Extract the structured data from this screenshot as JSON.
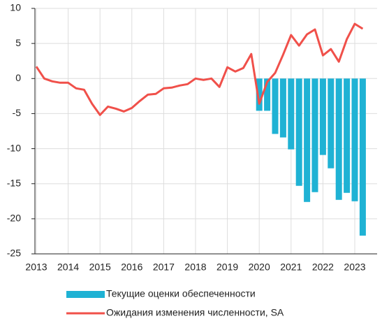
{
  "chart_data": {
    "type": "bar_line",
    "categories": [
      "2013",
      null,
      null,
      null,
      "2014",
      null,
      null,
      null,
      "2015",
      null,
      null,
      null,
      "2016",
      null,
      null,
      null,
      "2017",
      null,
      null,
      null,
      "2018",
      null,
      null,
      null,
      "2019",
      null,
      null,
      null,
      "2020",
      null,
      null,
      null,
      "2021",
      null,
      null,
      null,
      "2022",
      null,
      null,
      null,
      "2023",
      null
    ],
    "series": [
      {
        "name": "Текущие оценки обеспеченности",
        "type": "bar",
        "color": "#1fb2d4",
        "values": [
          null,
          null,
          null,
          null,
          null,
          null,
          null,
          null,
          null,
          null,
          null,
          null,
          null,
          null,
          null,
          null,
          null,
          null,
          null,
          null,
          null,
          null,
          null,
          null,
          null,
          null,
          null,
          null,
          -4.6,
          -4.6,
          -7.9,
          -8.4,
          -10.1,
          -15.3,
          -17.6,
          -16.2,
          -10.9,
          -12.8,
          -17.3,
          -16.3,
          -17.5,
          -22.4
        ]
      },
      {
        "name": "Ожидания изменения численности, SA",
        "type": "line",
        "color": "#f0504a",
        "values": [
          1.7,
          0,
          -0.4,
          -0.6,
          -0.6,
          -1.4,
          -1.6,
          -3.6,
          -5.2,
          -4.0,
          -4.3,
          -4.7,
          -4.2,
          -3.2,
          -2.3,
          -2.2,
          -1.4,
          -1.3,
          -1.0,
          -0.8,
          0,
          -0.2,
          0,
          -1.2,
          1.6,
          1.0,
          1.5,
          3.5,
          -3.6,
          -0.5,
          0.8,
          3.4,
          6.2,
          4.7,
          6.3,
          7.0,
          3.3,
          4.2,
          2.4,
          5.6,
          7.8,
          7.1
        ]
      }
    ],
    "ylim": [
      -25,
      10
    ],
    "yticks": [
      10,
      5,
      0,
      {
        "value": -5,
        "label": "-5"
      },
      {
        "value": -10,
        "label": "-10"
      },
      {
        "value": -15,
        "label": "-15"
      },
      {
        "value": -20,
        "label": "-20"
      },
      {
        "value": -25,
        "label": "-25"
      }
    ],
    "grid": true
  }
}
